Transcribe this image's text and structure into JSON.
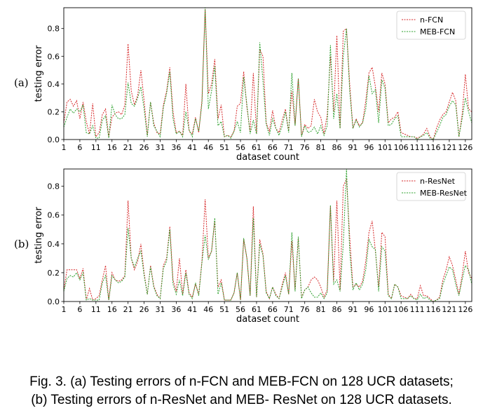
{
  "chart_data": [
    {
      "type": "line",
      "panel_label": "(a)",
      "xlabel": "dataset count",
      "ylabel": "testing error",
      "xlim": [
        1,
        128
      ],
      "ylim": [
        0,
        0.95
      ],
      "xticks": [
        1,
        6,
        11,
        16,
        21,
        26,
        31,
        36,
        41,
        46,
        51,
        56,
        61,
        66,
        71,
        76,
        81,
        86,
        91,
        96,
        101,
        106,
        111,
        116,
        121,
        126
      ],
      "yticks": [
        0.0,
        0.2,
        0.4,
        0.6,
        0.8
      ],
      "ytick_labels": [
        "0.0",
        "0.2",
        "0.4",
        "0.6",
        "0.8"
      ],
      "legend_position": "top-right",
      "series": [
        {
          "name": "n-FCN",
          "color": "#d62728",
          "values": [
            0.12,
            0.27,
            0.29,
            0.24,
            0.28,
            0.15,
            0.27,
            0.13,
            0.04,
            0.26,
            0.02,
            0.05,
            0.18,
            0.22,
            0.02,
            0.16,
            0.19,
            0.2,
            0.18,
            0.25,
            0.69,
            0.35,
            0.25,
            0.32,
            0.5,
            0.28,
            0.03,
            0.27,
            0.12,
            0.05,
            0.04,
            0.25,
            0.35,
            0.52,
            0.2,
            0.05,
            0.06,
            0.03,
            0.4,
            0.06,
            0.04,
            0.16,
            0.05,
            0.28,
            0.94,
            0.33,
            0.4,
            0.58,
            0.15,
            0.25,
            0.02,
            0.03,
            0.02,
            0.06,
            0.24,
            0.26,
            0.49,
            0.23,
            0.06,
            0.48,
            0.04,
            0.65,
            0.6,
            0.12,
            0.06,
            0.21,
            0.08,
            0.05,
            0.14,
            0.22,
            0.06,
            0.35,
            0.1,
            0.44,
            0.03,
            0.11,
            0.08,
            0.1,
            0.29,
            0.2,
            0.16,
            0.04,
            0.18,
            0.6,
            0.2,
            0.75,
            0.08,
            0.78,
            0.8,
            0.4,
            0.08,
            0.15,
            0.1,
            0.12,
            0.28,
            0.48,
            0.52,
            0.38,
            0.2,
            0.48,
            0.4,
            0.12,
            0.15,
            0.16,
            0.2,
            0.05,
            0.04,
            0.03,
            0.02,
            0.02,
            0.01,
            0.02,
            0.04,
            0.08,
            0.02,
            0.0,
            0.08,
            0.14,
            0.18,
            0.2,
            0.27,
            0.34,
            0.28,
            0.02,
            0.18,
            0.47,
            0.22,
            0.2
          ]
        },
        {
          "name": "MEB-FCN",
          "color": "#2ca02c",
          "values": [
            0.09,
            0.16,
            0.22,
            0.19,
            0.22,
            0.2,
            0.25,
            0.05,
            0.04,
            0.1,
            0.01,
            0.01,
            0.14,
            0.17,
            0.01,
            0.25,
            0.18,
            0.15,
            0.15,
            0.18,
            0.41,
            0.26,
            0.24,
            0.3,
            0.38,
            0.22,
            0.02,
            0.27,
            0.1,
            0.06,
            0.02,
            0.23,
            0.33,
            0.49,
            0.15,
            0.04,
            0.06,
            0.02,
            0.2,
            0.07,
            0.02,
            0.15,
            0.06,
            0.26,
            0.95,
            0.22,
            0.35,
            0.53,
            0.1,
            0.13,
            0.02,
            0.03,
            0.01,
            0.06,
            0.13,
            0.05,
            0.45,
            0.25,
            0.04,
            0.14,
            0.04,
            0.7,
            0.42,
            0.11,
            0.03,
            0.15,
            0.08,
            0.03,
            0.1,
            0.2,
            0.05,
            0.48,
            0.1,
            0.44,
            0.02,
            0.1,
            0.05,
            0.06,
            0.09,
            0.04,
            0.1,
            0.03,
            0.1,
            0.68,
            0.15,
            0.33,
            0.08,
            0.6,
            0.8,
            0.35,
            0.08,
            0.14,
            0.09,
            0.12,
            0.22,
            0.46,
            0.33,
            0.36,
            0.12,
            0.43,
            0.37,
            0.1,
            0.11,
            0.15,
            0.17,
            0.02,
            0.02,
            0.02,
            0.02,
            0.02,
            0.0,
            0.02,
            0.03,
            0.05,
            0.01,
            0.0,
            0.05,
            0.1,
            0.16,
            0.18,
            0.24,
            0.28,
            0.25,
            0.02,
            0.15,
            0.3,
            0.2,
            0.12
          ]
        }
      ]
    },
    {
      "type": "line",
      "panel_label": "(b)",
      "xlabel": "dataset count",
      "ylabel": "testing error",
      "xlim": [
        1,
        128
      ],
      "ylim": [
        0,
        0.92
      ],
      "xticks": [
        1,
        6,
        11,
        16,
        21,
        26,
        31,
        36,
        41,
        46,
        51,
        56,
        61,
        66,
        71,
        76,
        81,
        86,
        91,
        96,
        101,
        106,
        111,
        116,
        121,
        126
      ],
      "yticks": [
        0.0,
        0.2,
        0.4,
        0.6,
        0.8
      ],
      "ytick_labels": [
        "0.0",
        "0.2",
        "0.4",
        "0.6",
        "0.8"
      ],
      "legend_position": "top-right",
      "series": [
        {
          "name": "n-ResNet",
          "color": "#d62728",
          "values": [
            0.08,
            0.22,
            0.22,
            0.22,
            0.22,
            0.16,
            0.23,
            0.01,
            0.09,
            0.01,
            0.02,
            0.04,
            0.15,
            0.25,
            0.01,
            0.2,
            0.15,
            0.14,
            0.15,
            0.18,
            0.7,
            0.3,
            0.22,
            0.28,
            0.4,
            0.2,
            0.05,
            0.25,
            0.11,
            0.05,
            0.02,
            0.25,
            0.3,
            0.52,
            0.15,
            0.07,
            0.3,
            0.05,
            0.22,
            0.06,
            0.03,
            0.12,
            0.05,
            0.28,
            0.71,
            0.3,
            0.35,
            0.56,
            0.1,
            0.15,
            0.01,
            0.01,
            0.01,
            0.06,
            0.2,
            0.01,
            0.43,
            0.3,
            0.04,
            0.66,
            0.03,
            0.43,
            0.33,
            0.07,
            0.02,
            0.1,
            0.05,
            0.02,
            0.12,
            0.2,
            0.05,
            0.42,
            0.08,
            0.44,
            0.03,
            0.08,
            0.1,
            0.15,
            0.17,
            0.15,
            0.1,
            0.03,
            0.08,
            0.66,
            0.14,
            0.7,
            0.08,
            0.8,
            0.85,
            0.45,
            0.1,
            0.12,
            0.1,
            0.14,
            0.28,
            0.48,
            0.56,
            0.35,
            0.1,
            0.48,
            0.45,
            0.05,
            0.02,
            0.12,
            0.1,
            0.04,
            0.03,
            0.02,
            0.05,
            0.02,
            0.02,
            0.11,
            0.04,
            0.04,
            0.02,
            0.0,
            0.01,
            0.03,
            0.15,
            0.22,
            0.31,
            0.25,
            0.15,
            0.05,
            0.18,
            0.35,
            0.2,
            0.16
          ]
        },
        {
          "name": "MEB-ResNet",
          "color": "#2ca02c",
          "values": [
            0.07,
            0.16,
            0.18,
            0.17,
            0.2,
            0.15,
            0.2,
            0.01,
            0.02,
            0.01,
            0.01,
            0.01,
            0.13,
            0.18,
            0.01,
            0.18,
            0.15,
            0.13,
            0.14,
            0.17,
            0.51,
            0.3,
            0.24,
            0.3,
            0.35,
            0.18,
            0.05,
            0.24,
            0.1,
            0.04,
            0.02,
            0.23,
            0.28,
            0.5,
            0.12,
            0.05,
            0.15,
            0.04,
            0.2,
            0.05,
            0.02,
            0.13,
            0.04,
            0.27,
            0.46,
            0.29,
            0.35,
            0.58,
            0.05,
            0.13,
            0.01,
            0.01,
            0.01,
            0.06,
            0.2,
            0.01,
            0.44,
            0.3,
            0.04,
            0.58,
            0.03,
            0.4,
            0.32,
            0.06,
            0.02,
            0.1,
            0.04,
            0.02,
            0.1,
            0.18,
            0.05,
            0.48,
            0.07,
            0.45,
            0.02,
            0.08,
            0.1,
            0.06,
            0.03,
            0.03,
            0.06,
            0.02,
            0.06,
            0.67,
            0.12,
            0.15,
            0.07,
            0.4,
            0.92,
            0.35,
            0.08,
            0.13,
            0.08,
            0.12,
            0.22,
            0.43,
            0.38,
            0.36,
            0.07,
            0.38,
            0.35,
            0.04,
            0.02,
            0.12,
            0.1,
            0.02,
            0.02,
            0.02,
            0.04,
            0.02,
            0.01,
            0.05,
            0.02,
            0.03,
            0.01,
            0.0,
            0.01,
            0.02,
            0.12,
            0.18,
            0.24,
            0.22,
            0.12,
            0.04,
            0.15,
            0.25,
            0.22,
            0.12
          ]
        }
      ]
    }
  ],
  "caption": {
    "line1": "Fig. 3. (a) Testing errors of n-FCN and MEB-FCN on 128 UCR datasets;",
    "line2": "(b) Testing errors of n-ResNet and MEB- ResNet on 128 UCR datasets."
  }
}
